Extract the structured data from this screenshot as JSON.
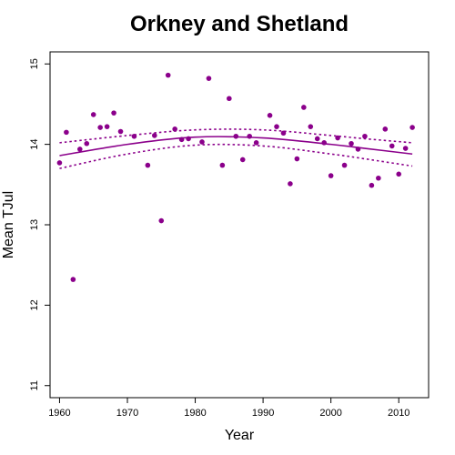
{
  "colors": {
    "series": "#8b008b",
    "axis": "#000000",
    "background": "#ffffff"
  },
  "chart_data": {
    "type": "scatter",
    "title": "Orkney and Shetland",
    "xlabel": "Year",
    "ylabel": "Mean TJul",
    "xlim": [
      1958.6,
      2014.4
    ],
    "ylim": [
      10.85,
      15.15
    ],
    "xticks": [
      1960,
      1970,
      1980,
      1990,
      2000,
      2010
    ],
    "yticks": [
      11,
      12,
      13,
      14,
      15
    ],
    "grid": false,
    "points": [
      {
        "x": 1960,
        "y": 13.77
      },
      {
        "x": 1961,
        "y": 14.15
      },
      {
        "x": 1962,
        "y": 12.32
      },
      {
        "x": 1963,
        "y": 13.94
      },
      {
        "x": 1964,
        "y": 14.01
      },
      {
        "x": 1965,
        "y": 14.37
      },
      {
        "x": 1966,
        "y": 14.21
      },
      {
        "x": 1967,
        "y": 14.22
      },
      {
        "x": 1968,
        "y": 14.39
      },
      {
        "x": 1969,
        "y": 14.16
      },
      {
        "x": 1971,
        "y": 14.1
      },
      {
        "x": 1973,
        "y": 13.74
      },
      {
        "x": 1974,
        "y": 14.11
      },
      {
        "x": 1975,
        "y": 13.05
      },
      {
        "x": 1976,
        "y": 14.86
      },
      {
        "x": 1977,
        "y": 14.19
      },
      {
        "x": 1978,
        "y": 14.06
      },
      {
        "x": 1979,
        "y": 14.07
      },
      {
        "x": 1981,
        "y": 14.03
      },
      {
        "x": 1982,
        "y": 14.82
      },
      {
        "x": 1984,
        "y": 13.74
      },
      {
        "x": 1985,
        "y": 14.57
      },
      {
        "x": 1986,
        "y": 14.1
      },
      {
        "x": 1987,
        "y": 13.81
      },
      {
        "x": 1988,
        "y": 14.1
      },
      {
        "x": 1989,
        "y": 14.02
      },
      {
        "x": 1991,
        "y": 14.36
      },
      {
        "x": 1992,
        "y": 14.22
      },
      {
        "x": 1993,
        "y": 14.14
      },
      {
        "x": 1994,
        "y": 13.51
      },
      {
        "x": 1995,
        "y": 13.82
      },
      {
        "x": 1996,
        "y": 14.46
      },
      {
        "x": 1997,
        "y": 14.22
      },
      {
        "x": 1998,
        "y": 14.07
      },
      {
        "x": 1999,
        "y": 14.02
      },
      {
        "x": 2000,
        "y": 13.61
      },
      {
        "x": 2001,
        "y": 14.08
      },
      {
        "x": 2002,
        "y": 13.74
      },
      {
        "x": 2003,
        "y": 14.01
      },
      {
        "x": 2004,
        "y": 13.94
      },
      {
        "x": 2005,
        "y": 14.1
      },
      {
        "x": 2006,
        "y": 13.49
      },
      {
        "x": 2007,
        "y": 13.58
      },
      {
        "x": 2008,
        "y": 14.19
      },
      {
        "x": 2009,
        "y": 13.98
      },
      {
        "x": 2010,
        "y": 13.63
      },
      {
        "x": 2011,
        "y": 13.95
      },
      {
        "x": 2012,
        "y": 14.21
      }
    ],
    "fit": {
      "x": [
        1960,
        1970,
        1980,
        1990,
        2000,
        2005,
        2012
      ],
      "y": [
        13.86,
        14.0,
        14.09,
        14.08,
        14.0,
        13.95,
        13.88
      ],
      "upper": [
        14.02,
        14.11,
        14.18,
        14.18,
        14.11,
        14.07,
        14.02
      ],
      "lower": [
        13.7,
        13.88,
        13.99,
        13.98,
        13.88,
        13.82,
        13.73
      ]
    }
  }
}
